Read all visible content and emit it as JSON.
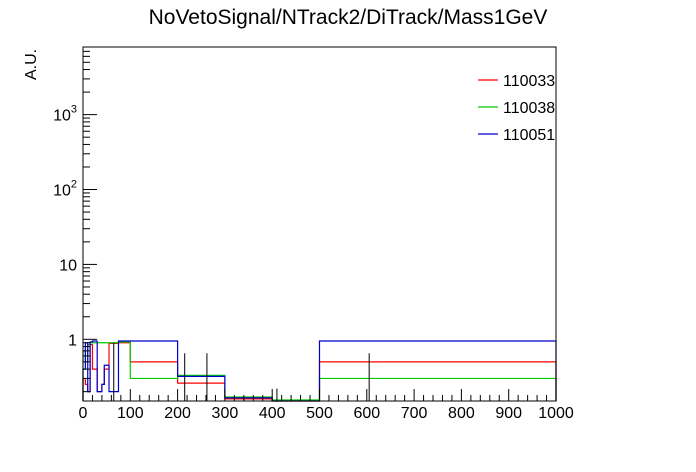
{
  "chart_data": {
    "type": "histogram",
    "title": "NoVetoSignal/NTrack2/DiTrack/Mass1GeV",
    "xlabel": "",
    "ylabel": "A.U.",
    "xlim": [
      0,
      1000
    ],
    "ylim": [
      0.15,
      8000
    ],
    "y_scale": "log",
    "x_ticks": [
      0,
      100,
      200,
      300,
      400,
      500,
      600,
      700,
      800,
      900,
      1000
    ],
    "x_tick_labels": [
      "0",
      "100",
      "200",
      "300",
      "400",
      "500",
      "600",
      "700",
      "800",
      "900",
      "1000"
    ],
    "y_ticks": [
      1,
      10,
      100,
      1000
    ],
    "y_tick_labels": [
      {
        "base": "1",
        "exp": ""
      },
      {
        "base": "10",
        "exp": ""
      },
      {
        "base": "10",
        "exp": "2"
      },
      {
        "base": "10",
        "exp": "3"
      }
    ],
    "grid": false,
    "legend_position": "top-right",
    "series": [
      {
        "name": "110033",
        "color": "#ff0000",
        "bins": [
          {
            "x0": 0,
            "x1": 5,
            "y": 0.3
          },
          {
            "x0": 5,
            "x1": 10,
            "y": 0.25
          },
          {
            "x0": 10,
            "x1": 15,
            "y": 0.2
          },
          {
            "x0": 15,
            "x1": 20,
            "y": 0.85
          },
          {
            "x0": 20,
            "x1": 30,
            "y": 0.4
          },
          {
            "x0": 30,
            "x1": 40,
            "y": 0.2
          },
          {
            "x0": 40,
            "x1": 45,
            "y": 0.25
          },
          {
            "x0": 45,
            "x1": 55,
            "y": 0.4
          },
          {
            "x0": 55,
            "x1": 75,
            "y": 0.88
          },
          {
            "x0": 75,
            "x1": 100,
            "y": 0.9
          },
          {
            "x0": 100,
            "x1": 200,
            "y": 0.5
          },
          {
            "x0": 200,
            "x1": 300,
            "y": 0.26
          },
          {
            "x0": 300,
            "x1": 400,
            "y": 0.16
          },
          {
            "x0": 400,
            "x1": 500,
            "y": 0.15
          },
          {
            "x0": 500,
            "x1": 1000,
            "y": 0.5
          }
        ]
      },
      {
        "name": "110038",
        "color": "#00cc00",
        "bins": [
          {
            "x0": 0,
            "x1": 5,
            "y": 0.7
          },
          {
            "x0": 5,
            "x1": 10,
            "y": 0.5
          },
          {
            "x0": 10,
            "x1": 15,
            "y": 0.85
          },
          {
            "x0": 15,
            "x1": 20,
            "y": 0.9
          },
          {
            "x0": 20,
            "x1": 30,
            "y": 0.9
          },
          {
            "x0": 30,
            "x1": 40,
            "y": 0.9
          },
          {
            "x0": 40,
            "x1": 45,
            "y": 0.9
          },
          {
            "x0": 45,
            "x1": 55,
            "y": 0.9
          },
          {
            "x0": 55,
            "x1": 75,
            "y": 0.9
          },
          {
            "x0": 75,
            "x1": 100,
            "y": 0.92
          },
          {
            "x0": 100,
            "x1": 200,
            "y": 0.3
          },
          {
            "x0": 200,
            "x1": 300,
            "y": 0.33
          },
          {
            "x0": 300,
            "x1": 400,
            "y": 0.17
          },
          {
            "x0": 400,
            "x1": 500,
            "y": 0.155
          },
          {
            "x0": 500,
            "x1": 1000,
            "y": 0.3
          }
        ]
      },
      {
        "name": "110051",
        "color": "#0000cc",
        "bins": [
          {
            "x0": 0,
            "x1": 5,
            "y": 0.4
          },
          {
            "x0": 5,
            "x1": 10,
            "y": 0.9
          },
          {
            "x0": 10,
            "x1": 15,
            "y": 0.2
          },
          {
            "x0": 15,
            "x1": 20,
            "y": 0.92
          },
          {
            "x0": 20,
            "x1": 30,
            "y": 0.95
          },
          {
            "x0": 30,
            "x1": 40,
            "y": 0.2
          },
          {
            "x0": 40,
            "x1": 45,
            "y": 0.25
          },
          {
            "x0": 45,
            "x1": 55,
            "y": 0.45
          },
          {
            "x0": 55,
            "x1": 75,
            "y": 0.2
          },
          {
            "x0": 75,
            "x1": 100,
            "y": 0.95
          },
          {
            "x0": 100,
            "x1": 200,
            "y": 0.95
          },
          {
            "x0": 200,
            "x1": 300,
            "y": 0.32
          },
          {
            "x0": 300,
            "x1": 400,
            "y": 0.165
          },
          {
            "x0": 400,
            "x1": 500,
            "y": 0.15
          },
          {
            "x0": 500,
            "x1": 1000,
            "y": 0.95
          }
        ]
      }
    ],
    "error_bars": [
      {
        "x": 65,
        "y_high": 0.9
      },
      {
        "x": 215,
        "y_high": 0.65
      },
      {
        "x": 262,
        "y_high": 0.65
      },
      {
        "x": 340,
        "y_high": 0.17
      },
      {
        "x": 410,
        "y_high": 0.22
      },
      {
        "x": 605,
        "y_high": 0.65
      }
    ]
  }
}
